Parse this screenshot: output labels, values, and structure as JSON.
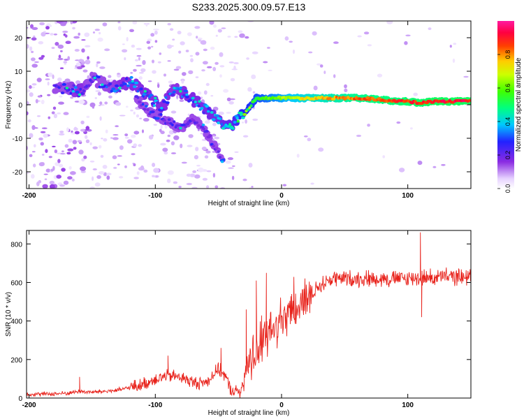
{
  "title": "S233.2025.300.09.57.E13",
  "chart_data": [
    {
      "type": "heatmap",
      "xlabel": "Height of straight line (km)",
      "ylabel": "Frequency (Hz)",
      "xlim": [
        -202,
        150
      ],
      "ylim": [
        -25,
        25
      ],
      "xticks": [
        -200,
        -100,
        0,
        100
      ],
      "yticks": [
        -20,
        -10,
        0,
        10,
        20
      ],
      "colorbar": {
        "label": "Normalized spectral amplitude",
        "range": [
          0,
          1
        ],
        "ticks": [
          "0.0",
          "0.2",
          "0.4",
          "0.6",
          "0.8"
        ],
        "tick_values": [
          0,
          0.2,
          0.4,
          0.6,
          0.8
        ]
      },
      "ridge": [
        {
          "x": -180,
          "f": 5,
          "a": 0.2
        },
        {
          "x": -170,
          "f": 5,
          "a": 0.25
        },
        {
          "x": -160,
          "f": 4,
          "a": 0.3
        },
        {
          "x": -150,
          "f": 8,
          "a": 0.22
        },
        {
          "x": -140,
          "f": 6,
          "a": 0.25
        },
        {
          "x": -130,
          "f": 5,
          "a": 0.28
        },
        {
          "x": -120,
          "f": 7,
          "a": 0.3
        },
        {
          "x": -110,
          "f": 4,
          "a": 0.3
        },
        {
          "x": -100,
          "f": 1,
          "a": 0.3
        },
        {
          "x": -95,
          "f": -1,
          "a": 0.3
        },
        {
          "x": -85,
          "f": 5,
          "a": 0.28
        },
        {
          "x": -75,
          "f": 3,
          "a": 0.3
        },
        {
          "x": -65,
          "f": 0,
          "a": 0.32
        },
        {
          "x": -55,
          "f": -3,
          "a": 0.33
        },
        {
          "x": -45,
          "f": -6,
          "a": 0.35
        },
        {
          "x": -40,
          "f": -7,
          "a": 0.38
        },
        {
          "x": -35,
          "f": -4,
          "a": 0.45
        },
        {
          "x": -30,
          "f": -3,
          "a": 0.5
        },
        {
          "x": -20,
          "f": 2,
          "a": 0.55
        },
        {
          "x": -10,
          "f": 2,
          "a": 0.6
        },
        {
          "x": 0,
          "f": 2,
          "a": 0.65
        },
        {
          "x": 10,
          "f": 2,
          "a": 0.7
        },
        {
          "x": 20,
          "f": 2,
          "a": 0.75
        },
        {
          "x": 40,
          "f": 2,
          "a": 0.8
        },
        {
          "x": 60,
          "f": 2,
          "a": 0.85
        },
        {
          "x": 80,
          "f": 1.5,
          "a": 0.88
        },
        {
          "x": 90,
          "f": 1,
          "a": 0.88
        },
        {
          "x": 100,
          "f": 1,
          "a": 0.9
        },
        {
          "x": 110,
          "f": 0.5,
          "a": 0.9
        },
        {
          "x": 120,
          "f": 1,
          "a": 0.92
        },
        {
          "x": 130,
          "f": 1,
          "a": 0.92
        },
        {
          "x": 140,
          "f": 1,
          "a": 0.92
        },
        {
          "x": 150,
          "f": 1,
          "a": 0.92
        }
      ],
      "secondary_track": [
        {
          "x": -115,
          "f": 2,
          "a": 0.25
        },
        {
          "x": -105,
          "f": -2,
          "a": 0.25
        },
        {
          "x": -90,
          "f": -5,
          "a": 0.25
        },
        {
          "x": -80,
          "f": -7,
          "a": 0.22
        },
        {
          "x": -70,
          "f": -4,
          "a": 0.2
        },
        {
          "x": -60,
          "f": -8,
          "a": 0.2
        },
        {
          "x": -50,
          "f": -14,
          "a": 0.22
        },
        {
          "x": -46,
          "f": -17,
          "a": 0.25
        }
      ]
    },
    {
      "type": "line",
      "xlabel": "Height of straight line (km)",
      "ylabel": "SNR (10 * v/v)",
      "xlim": [
        -202,
        150
      ],
      "ylim": [
        0,
        870
      ],
      "xticks": [
        -200,
        -100,
        0,
        100
      ],
      "yticks": [
        0,
        200,
        400,
        600,
        800
      ],
      "series": [
        {
          "name": "SNR",
          "color": "#e8221b",
          "x": [
            -202,
            -190,
            -180,
            -170,
            -160,
            -150,
            -140,
            -130,
            -120,
            -110,
            -100,
            -90,
            -80,
            -70,
            -60,
            -50,
            -45,
            -40,
            -35,
            -30,
            -25,
            -20,
            -15,
            -10,
            -5,
            0,
            5,
            10,
            15,
            20,
            25,
            30,
            40,
            50,
            60,
            70,
            80,
            90,
            100,
            110,
            120,
            130,
            140,
            150
          ],
          "y": [
            20,
            20,
            22,
            25,
            35,
            30,
            35,
            40,
            55,
            70,
            100,
            115,
            110,
            80,
            80,
            150,
            120,
            40,
            30,
            60,
            180,
            250,
            300,
            330,
            370,
            390,
            420,
            450,
            490,
            520,
            550,
            580,
            620,
            620,
            620,
            620,
            620,
            620,
            620,
            625,
            625,
            630,
            630,
            630
          ]
        }
      ],
      "spikes": [
        {
          "x": -160,
          "y": 110
        },
        {
          "x": -90,
          "y": 220
        },
        {
          "x": -48,
          "y": 260
        },
        {
          "x": -28,
          "y": 460
        },
        {
          "x": -20,
          "y": 610
        },
        {
          "x": -12,
          "y": 650
        },
        {
          "x": 8,
          "y": 540
        },
        {
          "x": 110,
          "y": 860
        },
        {
          "x": 111,
          "y": 420
        }
      ]
    }
  ]
}
